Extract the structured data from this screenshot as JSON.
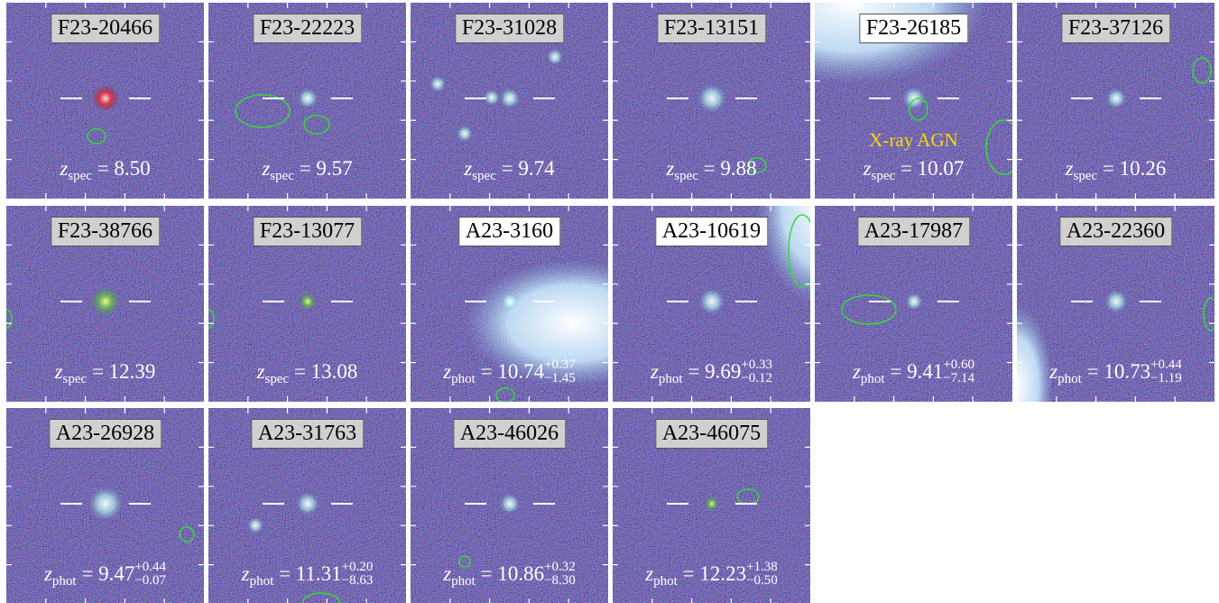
{
  "symbol": "z",
  "relation": "=",
  "annotation": "X-ray AGN",
  "panels": [
    {
      "name": "F23-20466",
      "kind": "spec",
      "z": "8.50"
    },
    {
      "name": "F23-22223",
      "kind": "spec",
      "z": "9.57"
    },
    {
      "name": "F23-31028",
      "kind": "spec",
      "z": "9.74"
    },
    {
      "name": "F23-13151",
      "kind": "spec",
      "z": "9.88"
    },
    {
      "name": "F23-26185",
      "kind": "spec",
      "z": "10.07"
    },
    {
      "name": "F23-37126",
      "kind": "spec",
      "z": "10.26"
    },
    {
      "name": "F23-38766",
      "kind": "spec",
      "z": "12.39"
    },
    {
      "name": "F23-13077",
      "kind": "spec",
      "z": "13.08"
    },
    {
      "name": "A23-3160",
      "kind": "phot",
      "z": "10.74",
      "plus": "+0.37",
      "minus": "−1.45"
    },
    {
      "name": "A23-10619",
      "kind": "phot",
      "z": "9.69",
      "plus": "+0.33",
      "minus": "−0.12"
    },
    {
      "name": "A23-17987",
      "kind": "phot",
      "z": "9.41",
      "plus": "+0.60",
      "minus": "−7.14"
    },
    {
      "name": "A23-22360",
      "kind": "phot",
      "z": "10.73",
      "plus": "+0.44",
      "minus": "−1.19"
    },
    {
      "name": "A23-26928",
      "kind": "phot",
      "z": "9.47",
      "plus": "+0.44",
      "minus": "−0.07"
    },
    {
      "name": "A23-31763",
      "kind": "phot",
      "z": "11.31",
      "plus": "+0.20",
      "minus": "−8.63"
    },
    {
      "name": "A23-46026",
      "kind": "phot",
      "z": "10.86",
      "plus": "+0.32",
      "minus": "−8.30"
    },
    {
      "name": "A23-46075",
      "kind": "phot",
      "z": "12.23",
      "plus": "+1.38",
      "minus": "−0.50"
    }
  ]
}
